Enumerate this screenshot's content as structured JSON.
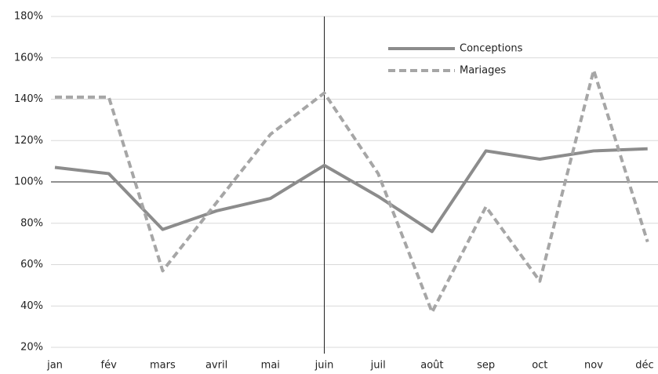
{
  "chart_data": {
    "type": "line",
    "categories": [
      "jan",
      "fév",
      "mars",
      "avril",
      "mai",
      "juin",
      "juil",
      "août",
      "sep",
      "oct",
      "nov",
      "déc"
    ],
    "series": [
      {
        "name": "Conceptions",
        "color": "#8c8c8c",
        "dash": false,
        "values": [
          107,
          104,
          77,
          86,
          92,
          108,
          93,
          76,
          115,
          111,
          115,
          116
        ]
      },
      {
        "name": "Mariages",
        "color": "#a6a6a6",
        "dash": true,
        "values": [
          141,
          141,
          57,
          90,
          123,
          143,
          104,
          37,
          88,
          52,
          154,
          71
        ]
      }
    ],
    "ylim": [
      20,
      180
    ],
    "yticks": [
      {
        "value": 20,
        "label": "20%"
      },
      {
        "value": 40,
        "label": "40%"
      },
      {
        "value": 60,
        "label": "60%"
      },
      {
        "value": 80,
        "label": "80%"
      },
      {
        "value": 100,
        "label": "100%"
      },
      {
        "value": 120,
        "label": "120%"
      },
      {
        "value": 140,
        "label": "140%"
      },
      {
        "value": 160,
        "label": "160%"
      },
      {
        "value": 180,
        "label": "180%"
      }
    ],
    "grid": true,
    "reference_line_y": 100,
    "reference_line_x": "juin",
    "legend": "top-right"
  }
}
